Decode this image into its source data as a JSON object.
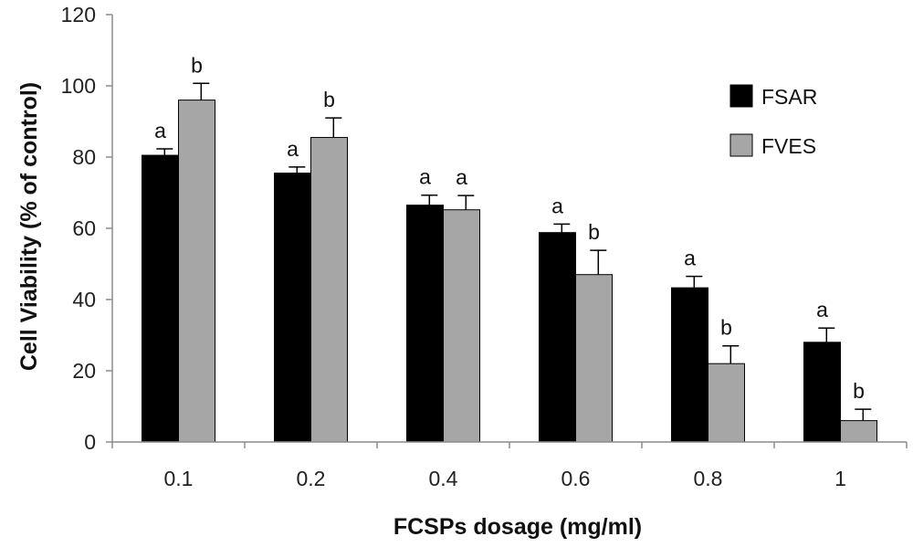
{
  "chart_data": {
    "type": "bar",
    "title": "",
    "xlabel": "FCSPs dosage (mg/ml)",
    "ylabel": "Cell Viability (% of control)",
    "ylim": [
      0,
      120
    ],
    "yticks": [
      0,
      20,
      40,
      60,
      80,
      100,
      120
    ],
    "categories": [
      "0.1",
      "0.2",
      "0.4",
      "0.6",
      "0.8",
      "1"
    ],
    "series": [
      {
        "name": "FSAR",
        "color": "#000000",
        "values": [
          80.5,
          75.5,
          66.5,
          58.8,
          43.3,
          28.0
        ],
        "errors": [
          1.8,
          1.7,
          2.8,
          2.4,
          3.2,
          4.0
        ],
        "labels": [
          "a",
          "a",
          "a",
          "a",
          "a",
          "a"
        ]
      },
      {
        "name": "FVES",
        "color": "#a6a6a6",
        "values": [
          96.0,
          85.5,
          65.2,
          47.0,
          22.0,
          6.0
        ],
        "errors": [
          4.7,
          5.5,
          4.0,
          6.8,
          5.0,
          3.2
        ],
        "labels": [
          "b",
          "b",
          "a",
          "b",
          "b",
          "b"
        ]
      }
    ],
    "legend_position": "top-right"
  }
}
